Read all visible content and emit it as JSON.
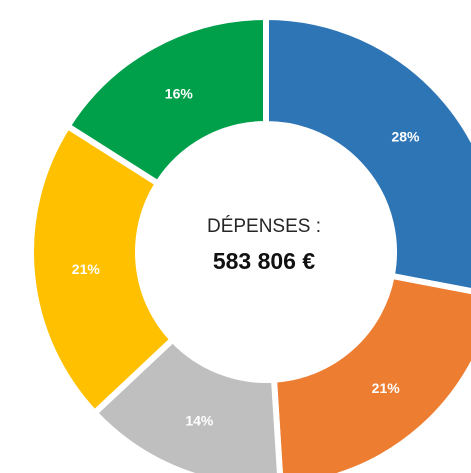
{
  "chart_data": {
    "type": "pie",
    "style": "donut",
    "center": {
      "label": "DÉPENSES :",
      "value": "583 806 €"
    },
    "slices": [
      {
        "value": 28,
        "label": "28%",
        "color": "#2E75B6"
      },
      {
        "value": 21,
        "label": "21%",
        "color": "#ED7D31"
      },
      {
        "value": 14,
        "label": "14%",
        "color": "#BFBFBF"
      },
      {
        "value": 21,
        "label": "21%",
        "color": "#FFC000"
      },
      {
        "value": 16,
        "label": "16%",
        "color": "#00A04B"
      }
    ]
  }
}
